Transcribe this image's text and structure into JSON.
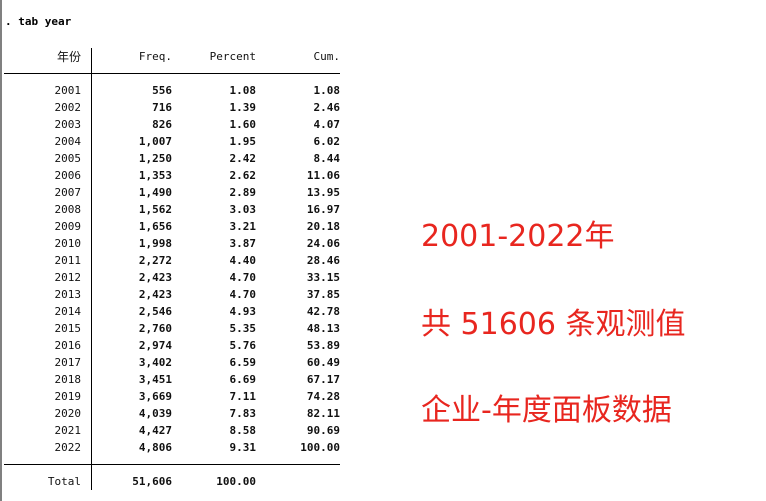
{
  "command": ". tab year",
  "table": {
    "headers": [
      "年份",
      "Freq.",
      "Percent",
      "Cum."
    ],
    "rows": [
      [
        "2001",
        "556",
        "1.08",
        "1.08"
      ],
      [
        "2002",
        "716",
        "1.39",
        "2.46"
      ],
      [
        "2003",
        "826",
        "1.60",
        "4.07"
      ],
      [
        "2004",
        "1,007",
        "1.95",
        "6.02"
      ],
      [
        "2005",
        "1,250",
        "2.42",
        "8.44"
      ],
      [
        "2006",
        "1,353",
        "2.62",
        "11.06"
      ],
      [
        "2007",
        "1,490",
        "2.89",
        "13.95"
      ],
      [
        "2008",
        "1,562",
        "3.03",
        "16.97"
      ],
      [
        "2009",
        "1,656",
        "3.21",
        "20.18"
      ],
      [
        "2010",
        "1,998",
        "3.87",
        "24.06"
      ],
      [
        "2011",
        "2,272",
        "4.40",
        "28.46"
      ],
      [
        "2012",
        "2,423",
        "4.70",
        "33.15"
      ],
      [
        "2013",
        "2,423",
        "4.70",
        "37.85"
      ],
      [
        "2014",
        "2,546",
        "4.93",
        "42.78"
      ],
      [
        "2015",
        "2,760",
        "5.35",
        "48.13"
      ],
      [
        "2016",
        "2,974",
        "5.76",
        "53.89"
      ],
      [
        "2017",
        "3,402",
        "6.59",
        "60.49"
      ],
      [
        "2018",
        "3,451",
        "6.69",
        "67.17"
      ],
      [
        "2019",
        "3,669",
        "7.11",
        "74.28"
      ],
      [
        "2020",
        "4,039",
        "7.83",
        "82.11"
      ],
      [
        "2021",
        "4,427",
        "8.58",
        "90.69"
      ],
      [
        "2022",
        "4,806",
        "9.31",
        "100.00"
      ]
    ],
    "total": [
      "Total",
      "51,606",
      "100.00"
    ]
  },
  "annotations": [
    "2001-2022年",
    "共 51606 条观测值",
    "企业-年度面板数据"
  ],
  "colors": {
    "annotation": "#e8261f"
  }
}
